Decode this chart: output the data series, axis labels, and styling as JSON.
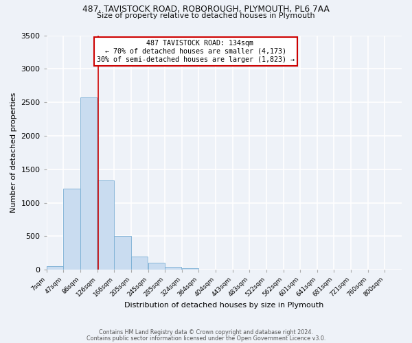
{
  "title_line1": "487, TAVISTOCK ROAD, ROBOROUGH, PLYMOUTH, PL6 7AA",
  "title_line2": "Size of property relative to detached houses in Plymouth",
  "xlabel": "Distribution of detached houses by size in Plymouth",
  "ylabel": "Number of detached properties",
  "bar_labels": [
    "7sqm",
    "47sqm",
    "86sqm",
    "126sqm",
    "166sqm",
    "205sqm",
    "245sqm",
    "285sqm",
    "324sqm",
    "364sqm",
    "404sqm",
    "443sqm",
    "483sqm",
    "522sqm",
    "562sqm",
    "601sqm",
    "641sqm",
    "681sqm",
    "721sqm",
    "760sqm",
    "800sqm"
  ],
  "bar_values": [
    50,
    1215,
    2570,
    1335,
    500,
    200,
    110,
    45,
    20,
    5,
    2,
    1,
    1,
    0,
    0,
    0,
    0,
    0,
    0,
    0,
    0
  ],
  "bar_color": "#c9dcf0",
  "bar_edge_color": "#7aafd4",
  "annotation_text_line1": "487 TAVISTOCK ROAD: 134sqm",
  "annotation_text_line2": "← 70% of detached houses are smaller (4,173)",
  "annotation_text_line3": "30% of semi-detached houses are larger (1,823) →",
  "annotation_box_color": "#ffffff",
  "annotation_box_edge_color": "#cc0000",
  "vline_color": "#cc0000",
  "ylim": [
    0,
    3500
  ],
  "yticks": [
    0,
    500,
    1000,
    1500,
    2000,
    2500,
    3000,
    3500
  ],
  "footer_line1": "Contains HM Land Registry data © Crown copyright and database right 2024.",
  "footer_line2": "Contains public sector information licensed under the Open Government Licence v3.0.",
  "background_color": "#eef2f8",
  "plot_background_color": "#eef2f8",
  "grid_color": "#ffffff",
  "bin_width": 39,
  "vline_x": 126
}
